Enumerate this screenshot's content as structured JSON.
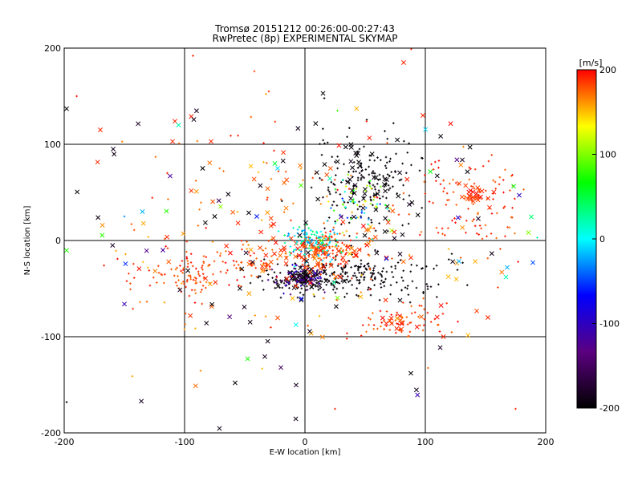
{
  "chart_data": {
    "type": "scatter",
    "title": "Tromsø 20151212 00:26:00-00:27:43",
    "subtitle": "RwPretec (8p) EXPERIMENTAL SKYMAP",
    "xlabel": "E-W location [km]",
    "ylabel": "N-S location [km]",
    "xlim": [
      -200,
      200
    ],
    "ylim": [
      -200,
      200
    ],
    "xticks": [
      "-200",
      "-100",
      "0",
      "100",
      "200"
    ],
    "yticks": [
      "-200",
      "-100",
      "0",
      "100",
      "200"
    ],
    "grid": true,
    "grid_lines": {
      "x": [
        -100,
        0,
        100
      ],
      "y": [
        -100,
        0,
        100
      ]
    },
    "colorbar": {
      "label": "[m/s]",
      "range": [
        -200,
        200
      ],
      "ticks": [
        "200",
        "100",
        "0",
        "-100",
        "-200"
      ],
      "colormap": [
        "#000000",
        "#5b0080",
        "#0000ff",
        "#00ffff",
        "#00ff00",
        "#ffff00",
        "#ff0000"
      ]
    },
    "marker_types": [
      "x",
      "+"
    ],
    "clusters": [
      {
        "cx": 0,
        "cy": -40,
        "sx": 22,
        "sy": 8,
        "n": 140,
        "vmin": -200,
        "vmax": -185,
        "marker": "+"
      },
      {
        "cx": 40,
        "cy": -35,
        "sx": 18,
        "sy": 9,
        "n": 120,
        "vmin": -200,
        "vmax": -190,
        "marker": "+"
      },
      {
        "cx": 0,
        "cy": -40,
        "sx": 10,
        "sy": 6,
        "n": 40,
        "vmin": -200,
        "vmax": -190,
        "marker": "x"
      },
      {
        "cx": -5,
        "cy": -38,
        "sx": 12,
        "sy": 6,
        "n": 70,
        "vmin": -150,
        "vmax": -90,
        "marker": "+"
      },
      {
        "cx": 15,
        "cy": -8,
        "sx": 15,
        "sy": 9,
        "n": 120,
        "vmin": 160,
        "vmax": 200,
        "marker": "+"
      },
      {
        "cx": 5,
        "cy": -15,
        "sx": 30,
        "sy": 10,
        "n": 60,
        "vmin": 170,
        "vmax": 200,
        "marker": "x"
      },
      {
        "cx": 5,
        "cy": 0,
        "sx": 12,
        "sy": 8,
        "n": 120,
        "vmin": -40,
        "vmax": 50,
        "marker": "+"
      },
      {
        "cx": 50,
        "cy": 60,
        "sx": 22,
        "sy": 25,
        "n": 170,
        "vmin": -200,
        "vmax": -190,
        "marker": "+"
      },
      {
        "cx": 55,
        "cy": 60,
        "sx": 22,
        "sy": 25,
        "n": 40,
        "vmin": -200,
        "vmax": -190,
        "marker": "x"
      },
      {
        "cx": 45,
        "cy": 40,
        "sx": 15,
        "sy": 15,
        "n": 35,
        "vmin": 60,
        "vmax": 140,
        "marker": "+"
      },
      {
        "cx": 40,
        "cy": 30,
        "sx": 15,
        "sy": 12,
        "n": 25,
        "vmin": -60,
        "vmax": 20,
        "marker": "+"
      },
      {
        "cx": -90,
        "cy": -35,
        "sx": 22,
        "sy": 12,
        "n": 90,
        "vmin": 170,
        "vmax": 200,
        "marker": "+"
      },
      {
        "cx": -45,
        "cy": -20,
        "sx": 25,
        "sy": 12,
        "n": 50,
        "vmin": 170,
        "vmax": 200,
        "marker": "+"
      },
      {
        "cx": 140,
        "cy": 40,
        "sx": 22,
        "sy": 22,
        "n": 100,
        "vmin": 170,
        "vmax": 200,
        "marker": "+"
      },
      {
        "cx": 140,
        "cy": 45,
        "sx": 8,
        "sy": 5,
        "n": 25,
        "vmin": 180,
        "vmax": 200,
        "marker": "x"
      },
      {
        "cx": 80,
        "cy": -85,
        "sx": 15,
        "sy": 10,
        "n": 60,
        "vmin": 170,
        "vmax": 200,
        "marker": "+"
      },
      {
        "cx": 80,
        "cy": -85,
        "sx": 15,
        "sy": 10,
        "n": 15,
        "vmin": 170,
        "vmax": 200,
        "marker": "x"
      },
      {
        "cx": 90,
        "cy": -40,
        "sx": 20,
        "sy": 15,
        "n": 40,
        "vmin": -200,
        "vmax": -190,
        "marker": "+"
      },
      {
        "cx": 0,
        "cy": 0,
        "sx": 90,
        "sy": 70,
        "n": 150,
        "vmin": 150,
        "vmax": 200,
        "marker": "+"
      },
      {
        "cx": 0,
        "cy": 0,
        "sx": 90,
        "sy": 70,
        "n": 80,
        "vmin": 150,
        "vmax": 200,
        "marker": "x"
      },
      {
        "cx": 0,
        "cy": 0,
        "sx": 90,
        "sy": 70,
        "n": 60,
        "vmin": -200,
        "vmax": -180,
        "marker": "x"
      },
      {
        "cx": 0,
        "cy": 0,
        "sx": 100,
        "sy": 80,
        "n": 40,
        "vmin": -200,
        "vmax": 200,
        "marker": "x"
      }
    ],
    "points": [
      {
        "x": -198,
        "y": 137,
        "v": -200,
        "m": "x"
      },
      {
        "x": -170,
        "y": 115,
        "v": 190,
        "m": "x"
      },
      {
        "x": -108,
        "y": 124,
        "v": 190,
        "m": "x"
      },
      {
        "x": -105,
        "y": 120,
        "v": 20,
        "m": "x"
      },
      {
        "x": -110,
        "y": 103,
        "v": 190,
        "m": "x"
      },
      {
        "x": -93,
        "y": 192,
        "v": 190,
        "m": "+"
      },
      {
        "x": -78,
        "y": 103,
        "v": 190,
        "m": "x"
      },
      {
        "x": -112,
        "y": 67,
        "v": -120,
        "m": "x"
      },
      {
        "x": -135,
        "y": 30,
        "v": -20,
        "m": "x"
      },
      {
        "x": -150,
        "y": 25,
        "v": -30,
        "m": "+"
      },
      {
        "x": -85,
        "y": 75,
        "v": -200,
        "m": "x"
      },
      {
        "x": -75,
        "y": 25,
        "v": -200,
        "m": "x"
      },
      {
        "x": -58,
        "y": -148,
        "v": -200,
        "m": "x"
      },
      {
        "x": -20,
        "y": -132,
        "v": -150,
        "m": "x"
      },
      {
        "x": 15,
        "y": 153,
        "v": -200,
        "m": "x"
      },
      {
        "x": 82,
        "y": 185,
        "v": 190,
        "m": "x"
      },
      {
        "x": 98,
        "y": 130,
        "v": 190,
        "m": "x"
      },
      {
        "x": 88,
        "y": -138,
        "v": -200,
        "m": "x"
      },
      {
        "x": 175,
        "y": -175,
        "v": 190,
        "m": "+"
      },
      {
        "x": 178,
        "y": 47,
        "v": -100,
        "m": "x"
      },
      {
        "x": 193,
        "y": 3,
        "v": 20,
        "m": "+"
      },
      {
        "x": 168,
        "y": -28,
        "v": -20,
        "m": "x"
      },
      {
        "x": 167,
        "y": -38,
        "v": 20,
        "m": "x"
      },
      {
        "x": 152,
        "y": -80,
        "v": 190,
        "m": "x"
      },
      {
        "x": 115,
        "y": -100,
        "v": 190,
        "m": "x"
      },
      {
        "x": -118,
        "y": -10,
        "v": -120,
        "m": "x"
      },
      {
        "x": -40,
        "y": 25,
        "v": -60,
        "m": "x"
      },
      {
        "x": -25,
        "y": 80,
        "v": 50,
        "m": "x"
      },
      {
        "x": 25,
        "y": -175,
        "v": 190,
        "m": "+"
      },
      {
        "x": -198,
        "y": -168,
        "v": -200,
        "m": "+"
      },
      {
        "x": -30,
        "y": 155,
        "v": 190,
        "m": "+"
      },
      {
        "x": 27,
        "y": 135,
        "v": 80,
        "m": "+"
      }
    ]
  }
}
